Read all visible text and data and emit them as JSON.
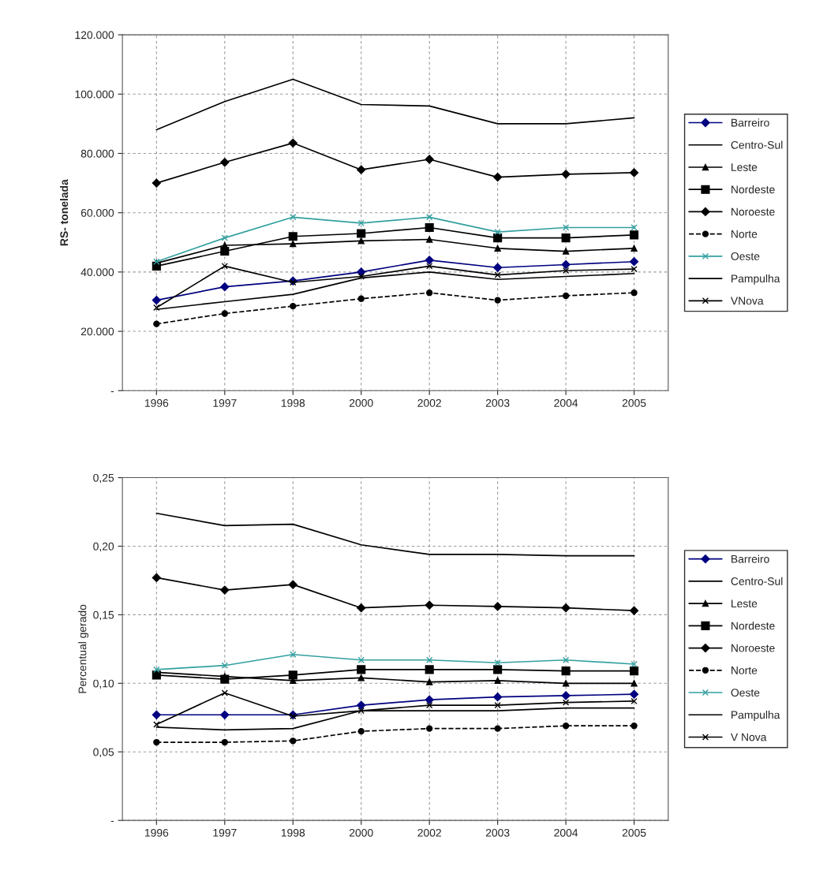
{
  "chart_data": [
    {
      "type": "line",
      "ylabel": "RS- tonelada",
      "categories": [
        "1996",
        "1997",
        "1998",
        "2000",
        "2002",
        "2003",
        "2004",
        "2005"
      ],
      "ylim": [
        0,
        120000
      ],
      "yticks": [
        {
          "value": 0,
          "label": "-"
        },
        {
          "value": 20000,
          "label": "20.000"
        },
        {
          "value": 40000,
          "label": "40.000"
        },
        {
          "value": 60000,
          "label": "60.000"
        },
        {
          "value": 80000,
          "label": "80.000"
        },
        {
          "value": 100000,
          "label": "100.000"
        },
        {
          "value": 120000,
          "label": "120.000"
        }
      ],
      "grid": true,
      "legend": "right",
      "series": [
        {
          "name": "Barreiro",
          "color": "#000080",
          "marker": "diamond",
          "values": [
            30500,
            35000,
            37000,
            40000,
            44000,
            41500,
            42500,
            43500
          ]
        },
        {
          "name": "Centro-Sul",
          "color": "#000000",
          "marker": "none",
          "values": [
            88000,
            97500,
            105000,
            96500,
            96000,
            90000,
            90000,
            92000
          ]
        },
        {
          "name": "Leste",
          "color": "#000000",
          "marker": "triangle",
          "values": [
            43000,
            49000,
            49500,
            50500,
            51000,
            48000,
            47000,
            48000
          ]
        },
        {
          "name": "Nordeste",
          "color": "#000000",
          "marker": "square",
          "values": [
            42000,
            47000,
            52000,
            53000,
            55000,
            51500,
            51500,
            52500
          ]
        },
        {
          "name": "Noroeste",
          "color": "#000000",
          "marker": "diamond",
          "values": [
            70000,
            77000,
            83500,
            74500,
            78000,
            72000,
            73000,
            73500
          ]
        },
        {
          "name": "Norte",
          "color": "#000000",
          "marker": "circle",
          "line_style": "dashed",
          "values": [
            22500,
            26000,
            28500,
            31000,
            33000,
            30500,
            32000,
            33000
          ]
        },
        {
          "name": "Oeste",
          "color": "#33a0a0",
          "marker": "cross",
          "values": [
            43500,
            51500,
            58500,
            56500,
            58500,
            53500,
            55000,
            55000
          ]
        },
        {
          "name": "Pampulha",
          "color": "#000000",
          "marker": "none",
          "values": [
            27400,
            30000,
            32500,
            38000,
            40000,
            37500,
            38500,
            39500
          ]
        },
        {
          "name": "VNova",
          "color": "#000000",
          "marker": "cross",
          "values": [
            28000,
            42000,
            36500,
            38500,
            42000,
            39000,
            40500,
            41000
          ]
        }
      ]
    },
    {
      "type": "line",
      "ylabel": "Percentual gerado",
      "categories": [
        "1996",
        "1997",
        "1998",
        "2000",
        "2002",
        "2003",
        "2004",
        "2005"
      ],
      "ylim": [
        0,
        0.25
      ],
      "yticks": [
        {
          "value": 0,
          "label": "-"
        },
        {
          "value": 0.05,
          "label": "0,05"
        },
        {
          "value": 0.1,
          "label": "0,10"
        },
        {
          "value": 0.15,
          "label": "0,15"
        },
        {
          "value": 0.2,
          "label": "0,20"
        },
        {
          "value": 0.25,
          "label": "0,25"
        }
      ],
      "grid": true,
      "legend": "right",
      "series": [
        {
          "name": "Barreiro",
          "color": "#000080",
          "marker": "diamond",
          "values": [
            0.077,
            0.077,
            0.077,
            0.084,
            0.088,
            0.09,
            0.091,
            0.092
          ]
        },
        {
          "name": "Centro-Sul",
          "color": "#000000",
          "marker": "none",
          "values": [
            0.224,
            0.215,
            0.216,
            0.201,
            0.194,
            0.194,
            0.193,
            0.193
          ]
        },
        {
          "name": "Leste",
          "color": "#000000",
          "marker": "triangle",
          "values": [
            0.108,
            0.105,
            0.102,
            0.104,
            0.101,
            0.102,
            0.1,
            0.1
          ]
        },
        {
          "name": "Nordeste",
          "color": "#000000",
          "marker": "square",
          "values": [
            0.106,
            0.103,
            0.106,
            0.11,
            0.11,
            0.11,
            0.109,
            0.109
          ]
        },
        {
          "name": "Noroeste",
          "color": "#000000",
          "marker": "diamond",
          "values": [
            0.177,
            0.168,
            0.172,
            0.155,
            0.157,
            0.156,
            0.155,
            0.153
          ]
        },
        {
          "name": "Norte",
          "color": "#000000",
          "marker": "circle",
          "line_style": "dashed",
          "values": [
            0.057,
            0.057,
            0.058,
            0.065,
            0.067,
            0.067,
            0.069,
            0.069
          ]
        },
        {
          "name": "Oeste",
          "color": "#33a0a0",
          "marker": "cross",
          "values": [
            0.11,
            0.113,
            0.121,
            0.117,
            0.117,
            0.115,
            0.117,
            0.114
          ]
        },
        {
          "name": "Pampulha",
          "color": "#000000",
          "marker": "none",
          "values": [
            0.068,
            0.066,
            0.067,
            0.08,
            0.08,
            0.08,
            0.082,
            0.082
          ]
        },
        {
          "name": "V Nova",
          "color": "#000000",
          "marker": "cross",
          "values": [
            0.07,
            0.093,
            0.076,
            0.08,
            0.084,
            0.084,
            0.086,
            0.087
          ]
        }
      ]
    }
  ]
}
